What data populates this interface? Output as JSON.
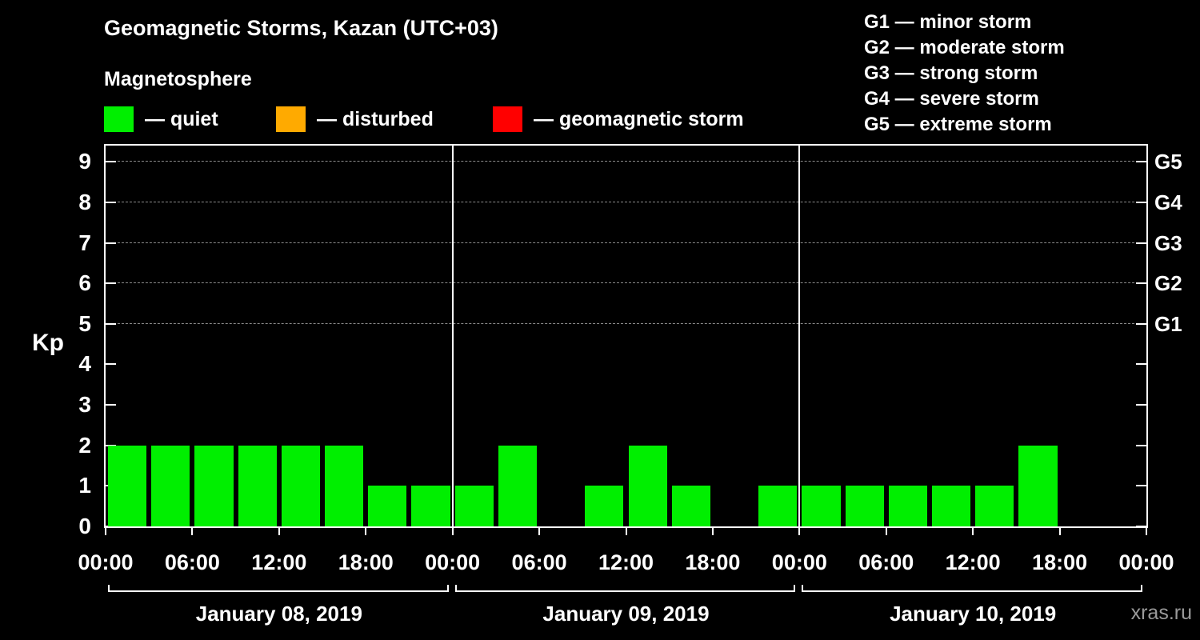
{
  "title": "Geomagnetic Storms, Kazan (UTC+03)",
  "subtitle": "Magnetosphere",
  "legend": {
    "items": [
      {
        "label": "— quiet",
        "color": "#00ef00"
      },
      {
        "label": "— disturbed",
        "color": "#ffaa00"
      },
      {
        "label": "— geomagnetic storm",
        "color": "#ff0000"
      }
    ]
  },
  "g_legend": [
    "G1 — minor storm",
    "G2 — moderate storm",
    "G3 — strong storm",
    "G4 — severe storm",
    "G5 — extreme storm"
  ],
  "watermark": "xras.ru",
  "chart_data": {
    "type": "bar",
    "title": "Geomagnetic Storms, Kazan (UTC+03)",
    "xlabel": "",
    "ylabel": "Kp",
    "ylim": [
      0,
      9.4
    ],
    "hours_total": 72,
    "hours_per_bar": 3,
    "x_tick_interval_hours": 6,
    "x_ticks": [
      "00:00",
      "06:00",
      "12:00",
      "18:00",
      "00:00",
      "06:00",
      "12:00",
      "18:00",
      "00:00",
      "06:00",
      "12:00",
      "18:00",
      "00:00"
    ],
    "y_ticks": [
      "0",
      "1",
      "2",
      "3",
      "4",
      "5",
      "6",
      "7",
      "8",
      "9"
    ],
    "g_levels": [
      {
        "label": "G1",
        "kp": 5
      },
      {
        "label": "G2",
        "kp": 6
      },
      {
        "label": "G3",
        "kp": 7
      },
      {
        "label": "G4",
        "kp": 8
      },
      {
        "label": "G5",
        "kp": 9
      }
    ],
    "day_divider_hours": [
      24,
      48
    ],
    "grid": "dashed-at-storm-levels",
    "legend_position": "top",
    "days": [
      {
        "date": "January 08, 2019",
        "kp": [
          2,
          2,
          2,
          2,
          2,
          2,
          1,
          1
        ]
      },
      {
        "date": "January 09, 2019",
        "kp": [
          1,
          2,
          0,
          1,
          2,
          1,
          0,
          1
        ]
      },
      {
        "date": "January 10, 2019",
        "kp": [
          1,
          1,
          1,
          1,
          1,
          2,
          0,
          0
        ]
      }
    ],
    "colors": {
      "quiet": "#00ef00",
      "disturbed": "#ffaa00",
      "storm": "#ff0000",
      "grid": "#8a8a8a",
      "axis": "#ffffff",
      "background": "#000000"
    }
  }
}
